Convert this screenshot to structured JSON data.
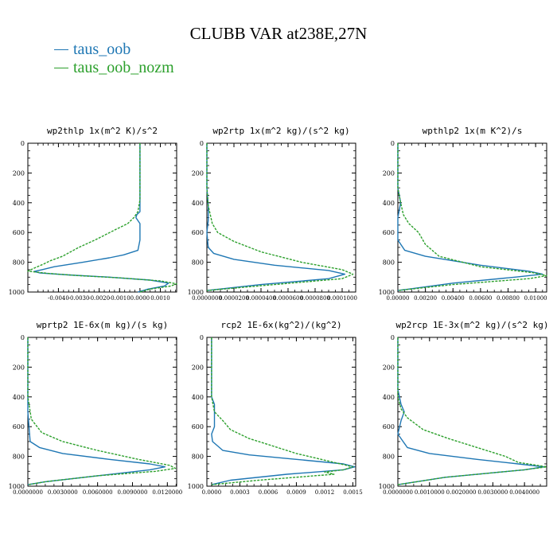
{
  "title": "CLUBB VAR at238E,27N",
  "legend": [
    {
      "label": "taus_oob",
      "color": "#1f77b4"
    },
    {
      "label": "taus_oob_nozm",
      "color": "#2ca02c"
    }
  ],
  "colors": {
    "oob": "#1f77b4",
    "nozm": "#2ca02c",
    "axis": "#000000"
  },
  "chart_data": [
    {
      "type": "line",
      "title": "wp2thlp  1x(m^2 K)/s^2",
      "xlim": [
        -0.0055,
        0.0018
      ],
      "ylim": [
        1000,
        0
      ],
      "yticks": [
        0,
        200,
        400,
        600,
        800,
        1000
      ],
      "xticks": [
        -0.004,
        -0.003,
        -0.002,
        -0.001,
        0.0,
        0.001
      ],
      "xticklabels": [
        "-0.0040",
        "-0.0030",
        "-0.0020",
        "-0.0010",
        "0.0000",
        "0.0010"
      ],
      "series": [
        {
          "name": "taus_oob",
          "x": [
            0.0,
            0.0,
            0.0,
            0.0,
            -0.00015,
            -0.0002,
            0.0,
            0.0,
            -0.0001,
            -0.0008,
            -0.0015,
            -0.0028,
            -0.0042,
            -0.0048,
            -0.0052,
            -0.0049,
            -0.0035,
            -0.0015,
            0.0005,
            0.0014,
            0.0012,
            0.0004,
            -0.0001
          ],
          "y": [
            0,
            200,
            380,
            460,
            480,
            500,
            540,
            650,
            720,
            750,
            770,
            800,
            830,
            850,
            862,
            872,
            885,
            900,
            920,
            940,
            960,
            980,
            1000
          ]
        },
        {
          "name": "taus_oob_nozm",
          "x": [
            0.0,
            0.0,
            0.0,
            -0.0001,
            -0.0003,
            -0.0006,
            -0.0012,
            -0.0022,
            -0.003,
            -0.0038,
            -0.0044,
            -0.0047,
            -0.0052,
            -0.0055,
            -0.0045,
            -0.003,
            -0.001,
            0.001,
            0.0018,
            0.0015,
            0.0005,
            0.0
          ],
          "y": [
            0,
            200,
            380,
            460,
            500,
            540,
            580,
            650,
            700,
            760,
            790,
            810,
            840,
            860,
            875,
            890,
            905,
            925,
            945,
            960,
            980,
            1000
          ]
        }
      ]
    },
    {
      "type": "line",
      "title": "wp2rtp  1x(m^2 kg)/(s^2 kg)",
      "xlim": [
        0.0,
        0.00011
      ],
      "ylim": [
        1000,
        0
      ],
      "yticks": [
        0,
        200,
        400,
        600,
        800,
        1000
      ],
      "xticks": [
        0.0,
        2e-05,
        4e-05,
        6e-05,
        8e-05,
        0.0001
      ],
      "xticklabels": [
        "0.0000000",
        "0.0000200",
        "0.0000400",
        "0.0000600",
        "0.0000800",
        "0.0001000"
      ],
      "series": [
        {
          "name": "taus_oob",
          "x": [
            0.0,
            0.0,
            1e-06,
            1e-06,
            0.0,
            1e-06,
            5e-06,
            2e-05,
            5e-05,
            9e-05,
            0.000102,
            9e-05,
            4e-05,
            0.0
          ],
          "y": [
            0,
            300,
            420,
            520,
            600,
            700,
            740,
            780,
            820,
            855,
            880,
            910,
            950,
            990
          ]
        },
        {
          "name": "taus_oob_nozm",
          "x": [
            0.0,
            0.0,
            1e-06,
            3e-06,
            4e-06,
            8e-06,
            2e-05,
            4e-05,
            7e-05,
            0.0001,
            0.000108,
            0.0001,
            5e-05,
            0.0
          ],
          "y": [
            0,
            300,
            420,
            500,
            540,
            600,
            660,
            730,
            800,
            850,
            880,
            910,
            950,
            990
          ]
        }
      ]
    },
    {
      "type": "line",
      "title": "wpthlp2  1x(m K^2)/s",
      "xlim": [
        0.0,
        0.0108
      ],
      "ylim": [
        1000,
        0
      ],
      "yticks": [
        0,
        200,
        400,
        600,
        800,
        1000
      ],
      "xticks": [
        0.0,
        0.002,
        0.004,
        0.006,
        0.008,
        0.01
      ],
      "xticklabels": [
        "0.00000",
        "0.00200",
        "0.00400",
        "0.00600",
        "0.00800",
        "0.01000"
      ],
      "series": [
        {
          "name": "taus_oob",
          "x": [
            0.0,
            0.0,
            0.0002,
            0.0,
            0.0,
            0.0005,
            0.002,
            0.006,
            0.0095,
            0.0105,
            0.0085,
            0.004,
            0.0
          ],
          "y": [
            0,
            300,
            400,
            500,
            650,
            720,
            760,
            820,
            860,
            880,
            900,
            940,
            990
          ]
        },
        {
          "name": "taus_oob_nozm",
          "x": [
            0.0,
            0.0,
            0.0002,
            0.0004,
            0.0008,
            0.0015,
            0.002,
            0.003,
            0.006,
            0.0098,
            0.0108,
            0.0095,
            0.004,
            0.0
          ],
          "y": [
            0,
            300,
            400,
            480,
            540,
            600,
            680,
            760,
            830,
            870,
            890,
            910,
            950,
            990
          ]
        }
      ]
    },
    {
      "type": "line",
      "title": "wprtp2  1E-6x(m kg)/(s kg)",
      "xlim": [
        0.0,
        0.0128
      ],
      "ylim": [
        1000,
        0
      ],
      "yticks": [
        0,
        200,
        400,
        600,
        800,
        1000
      ],
      "xticks": [
        0.0,
        0.003,
        0.006,
        0.009,
        0.012
      ],
      "xticklabels": [
        "0.0000000",
        "0.0030000",
        "0.0060000",
        "0.0090000",
        "0.0120000"
      ],
      "series": [
        {
          "name": "taus_oob",
          "x": [
            0.0,
            0.0,
            0.0002,
            0.001,
            0.003,
            0.007,
            0.0105,
            0.0118,
            0.0105,
            0.006,
            0.0015,
            0.0
          ],
          "y": [
            0,
            500,
            700,
            740,
            780,
            820,
            850,
            870,
            890,
            930,
            970,
            990
          ]
        },
        {
          "name": "taus_oob_nozm",
          "x": [
            0.0,
            0.0,
            0.0003,
            0.0012,
            0.003,
            0.006,
            0.0095,
            0.0122,
            0.0127,
            0.011,
            0.006,
            0.0015,
            0.0
          ],
          "y": [
            0,
            400,
            550,
            640,
            700,
            760,
            820,
            860,
            880,
            900,
            930,
            970,
            990
          ]
        }
      ]
    },
    {
      "type": "line",
      "title": "rcp2  1E-6x(kg^2)/(kg^2)",
      "xlim": [
        -5e-05,
        0.00153
      ],
      "ylim": [
        1000,
        0
      ],
      "yticks": [
        0,
        200,
        400,
        600,
        800,
        1000
      ],
      "xticks": [
        0.0,
        0.0003,
        0.0006,
        0.0009,
        0.0012,
        0.0015
      ],
      "xticklabels": [
        "0.0000",
        "0.0003",
        "0.0006",
        "0.0009",
        "0.0012",
        "0.0015"
      ],
      "series": [
        {
          "name": "taus_oob",
          "x": [
            0.0,
            0.0,
            0.0,
            3e-05,
            3e-05,
            0.0,
            1e-05,
            0.00012,
            0.0004,
            0.0009,
            0.0014,
            0.00152,
            0.0014,
            0.0008,
            0.0002,
            0.0
          ],
          "y": [
            0,
            350,
            400,
            450,
            600,
            650,
            700,
            760,
            790,
            820,
            850,
            870,
            890,
            920,
            960,
            990
          ]
        },
        {
          "name": "taus_oob_nozm",
          "x": [
            0.0,
            0.0,
            3e-05,
            0.00012,
            0.0002,
            0.0004,
            0.0006,
            0.0009,
            0.0013,
            0.0015,
            0.0014,
            0.0012,
            0.0013,
            0.0005,
            0.0
          ],
          "y": [
            0,
            400,
            500,
            560,
            620,
            680,
            720,
            780,
            840,
            870,
            890,
            905,
            920,
            960,
            990
          ]
        }
      ]
    },
    {
      "type": "line",
      "title": "wp2rcp  1E-3x(m^2 kg)/(s^2 kg)",
      "xlim": [
        0.0,
        0.0047
      ],
      "ylim": [
        1000,
        0
      ],
      "yticks": [
        0,
        200,
        400,
        600,
        800,
        1000
      ],
      "xticks": [
        0.0,
        0.001,
        0.002,
        0.003,
        0.004
      ],
      "xticklabels": [
        "0.0000000",
        "0.0010000",
        "0.0020000",
        "0.0030000",
        "0.0040000"
      ],
      "series": [
        {
          "name": "taus_oob",
          "x": [
            0.0,
            0.0,
            0.0001,
            0.0002,
            0.0001,
            0.0,
            0.0003,
            0.001,
            0.0025,
            0.0038,
            0.0046,
            0.004,
            0.0015,
            0.0
          ],
          "y": [
            0,
            350,
            450,
            500,
            560,
            650,
            740,
            780,
            820,
            850,
            870,
            890,
            940,
            990
          ]
        },
        {
          "name": "taus_oob_nozm",
          "x": [
            0.0,
            0.0,
            0.0001,
            0.0003,
            0.0008,
            0.0016,
            0.0025,
            0.0034,
            0.0038,
            0.0044,
            0.0047,
            0.004,
            0.0015,
            0.0
          ],
          "y": [
            0,
            400,
            480,
            540,
            620,
            680,
            740,
            800,
            840,
            860,
            870,
            890,
            940,
            990
          ]
        }
      ]
    }
  ]
}
